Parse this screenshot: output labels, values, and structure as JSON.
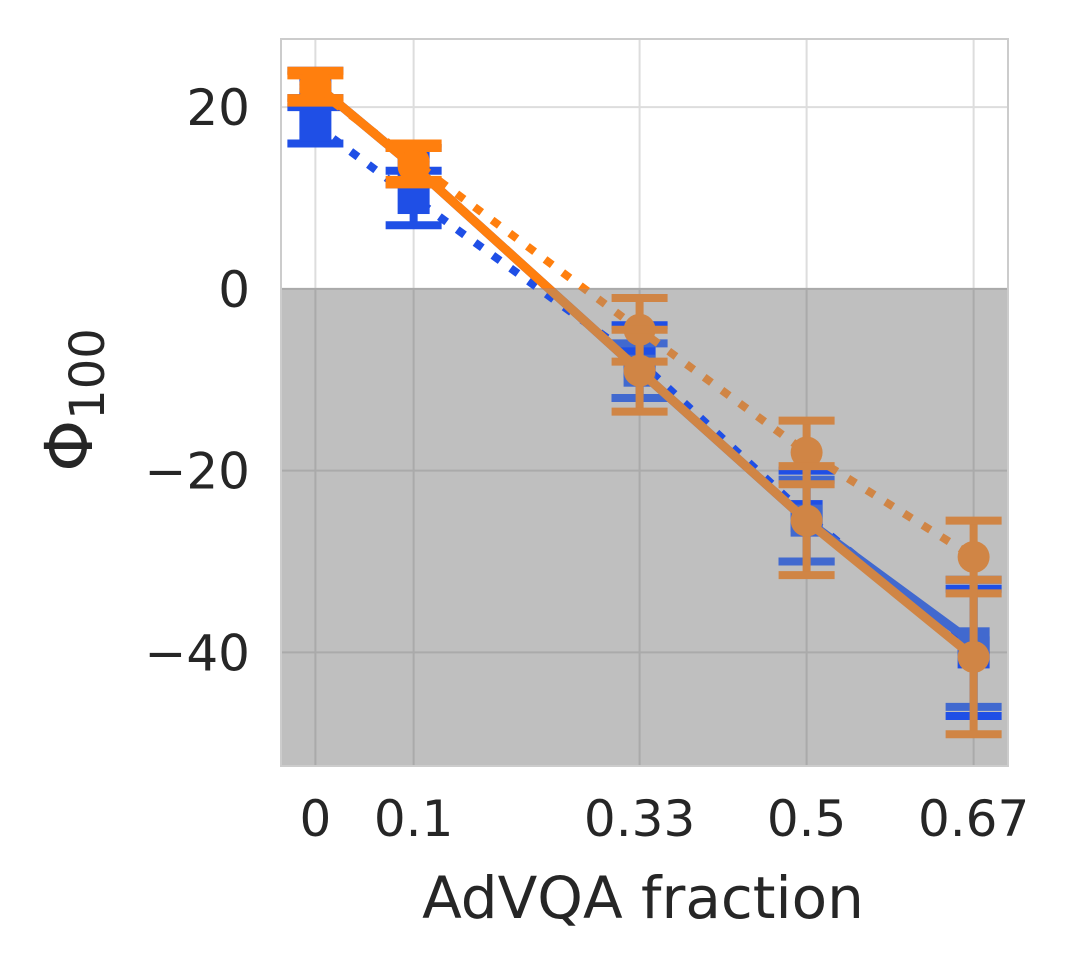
{
  "chart_data": {
    "type": "line",
    "title": "",
    "xlabel": "AdVQA fraction",
    "ylabel": "Φ",
    "ylabel_subscript": "100",
    "x": [
      0,
      0.1,
      0.33,
      0.5,
      0.67
    ],
    "x_tick_labels": [
      "0",
      "0.1",
      "0.33",
      "0.5",
      "0.67"
    ],
    "y_ticks": [
      20,
      0,
      -20,
      -40
    ],
    "y_tick_labels": [
      "20",
      "0",
      "−20",
      "−40"
    ],
    "xlim": [
      -0.035,
      0.705
    ],
    "ylim": [
      -52.5,
      27.5
    ],
    "grid": true,
    "negative_region_shaded": true,
    "colors": {
      "shade": "#bfbfbf",
      "grid_upper": "#dddddd",
      "grid_lower": "#aaaaaa",
      "frame": "#cccccc"
    },
    "series": [
      {
        "name": "blue-dotted",
        "style": "dotted",
        "color": "#1f4fe6",
        "marker": "square",
        "values": [
          18,
          10,
          -8,
          -25,
          -40
        ],
        "err_low": [
          2,
          3,
          4,
          5,
          7
        ],
        "err_high": [
          2,
          3,
          4,
          5,
          7
        ]
      },
      {
        "name": "blue-solid",
        "style": "solid",
        "color": "#4169cf",
        "marker": "square",
        "values": [
          22.5,
          13.5,
          -9,
          -25.5,
          -39
        ],
        "err_low": [
          1.5,
          2,
          3,
          4.5,
          7
        ],
        "err_high": [
          1.5,
          2,
          3,
          4.5,
          7
        ]
      },
      {
        "name": "orange-dotted",
        "style": "dotted",
        "color": "#d08545",
        "marker": "circle",
        "values": [
          22,
          14,
          -4.5,
          -18,
          -29.5
        ],
        "err_low": [
          1.5,
          2,
          3.5,
          3.5,
          4
        ],
        "err_high": [
          1.5,
          2,
          3.5,
          3.5,
          4
        ]
      },
      {
        "name": "orange-solid",
        "style": "solid",
        "color": "#d08545",
        "marker": "circle",
        "values": [
          22.5,
          13.5,
          -9,
          -25.5,
          -40.5
        ],
        "err_low": [
          1.5,
          2,
          4.5,
          6,
          8.5
        ],
        "err_high": [
          1.5,
          2,
          4.5,
          6,
          8.5
        ]
      }
    ],
    "above_zero_color": "#ff7f0e"
  }
}
